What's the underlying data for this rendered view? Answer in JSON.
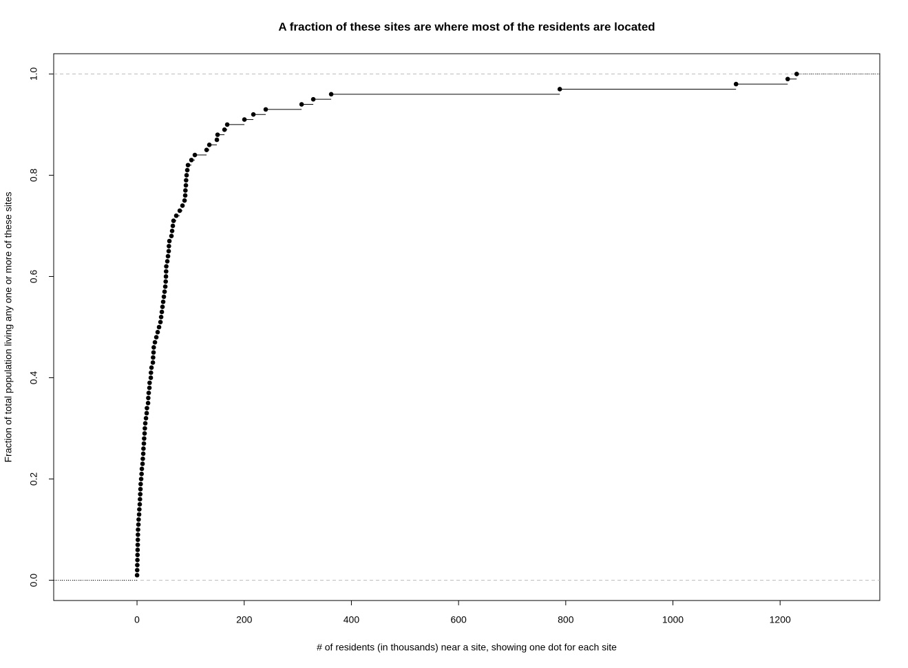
{
  "chart_data": {
    "type": "step",
    "title": "A fraction of these sites are where most of the residents are located",
    "x_label": "# of residents (in thousands) near a site, showing one dot for each site",
    "y_label": "Fraction of total population living any one or more of these sites",
    "series": [
      {
        "color": "#000000",
        "x": [
          0.1,
          0.3,
          0.5,
          0.7,
          0.9,
          1.1,
          1.3,
          1.5,
          1.7,
          1.9,
          2.6,
          3.0,
          3.9,
          4.3,
          5.1,
          5.5,
          6.0,
          6.4,
          6.8,
          7.7,
          8.5,
          9.0,
          10.3,
          10.8,
          11.6,
          12.0,
          12.8,
          13.3,
          14.1,
          14.6,
          15.4,
          16.7,
          18.0,
          18.5,
          20.6,
          21.0,
          21.8,
          23.1,
          23.5,
          25.7,
          26.0,
          27.0,
          29.6,
          30.0,
          30.8,
          31.2,
          33.4,
          36.0,
          38.5,
          41.1,
          43.7,
          45.0,
          46.3,
          47.5,
          48.8,
          50.1,
          51.4,
          52.7,
          53.5,
          54.0,
          54.3,
          54.6,
          56.5,
          57.8,
          59.1,
          59.5,
          60.4,
          64.2,
          65.5,
          66.8,
          68.1,
          73.2,
          79.7,
          84.8,
          88.7,
          89.9,
          90.3,
          91.2,
          91.6,
          92.5,
          93.8,
          95.1,
          101.5,
          107.9,
          129.8,
          134.9,
          149.0,
          150.3,
          163.2,
          168.3,
          200.4,
          217.1,
          240.2,
          307.1,
          328.9,
          362.3,
          788.9,
          1117.8,
          1214.2,
          1230.9
        ],
        "values": [
          0.01,
          0.02,
          0.03,
          0.04,
          0.05,
          0.06,
          0.07,
          0.08,
          0.09,
          0.1,
          0.11,
          0.12,
          0.13,
          0.14,
          0.15,
          0.16,
          0.17,
          0.18,
          0.19,
          0.2,
          0.21,
          0.22,
          0.23,
          0.24,
          0.25,
          0.26,
          0.27,
          0.28,
          0.29,
          0.3,
          0.31,
          0.32,
          0.33,
          0.34,
          0.35,
          0.36,
          0.37,
          0.38,
          0.39,
          0.4,
          0.41,
          0.42,
          0.43,
          0.44,
          0.45,
          0.46,
          0.47,
          0.48,
          0.49,
          0.5,
          0.51,
          0.52,
          0.53,
          0.54,
          0.55,
          0.56,
          0.57,
          0.58,
          0.59,
          0.6,
          0.61,
          0.62,
          0.63,
          0.64,
          0.65,
          0.66,
          0.67,
          0.68,
          0.69,
          0.7,
          0.71,
          0.72,
          0.73,
          0.74,
          0.75,
          0.76,
          0.77,
          0.78,
          0.79,
          0.8,
          0.81,
          0.82,
          0.83,
          0.84,
          0.85,
          0.86,
          0.87,
          0.88,
          0.89,
          0.9,
          0.91,
          0.92,
          0.93,
          0.94,
          0.95,
          0.96,
          0.97,
          0.98,
          0.99,
          1.0
        ]
      }
    ],
    "reference_lines": [
      0,
      1
    ],
    "xlim": [
      -155.5,
      1386
    ],
    "ylim": [
      -0.04,
      1.04
    ],
    "xticks": [
      0,
      200,
      400,
      600,
      800,
      1000,
      1200
    ],
    "yticks": [
      {
        "value": 0,
        "label": "0.0"
      },
      0.2,
      0.4,
      0.6,
      0.8,
      {
        "value": 1,
        "label": "1.0"
      }
    ]
  }
}
